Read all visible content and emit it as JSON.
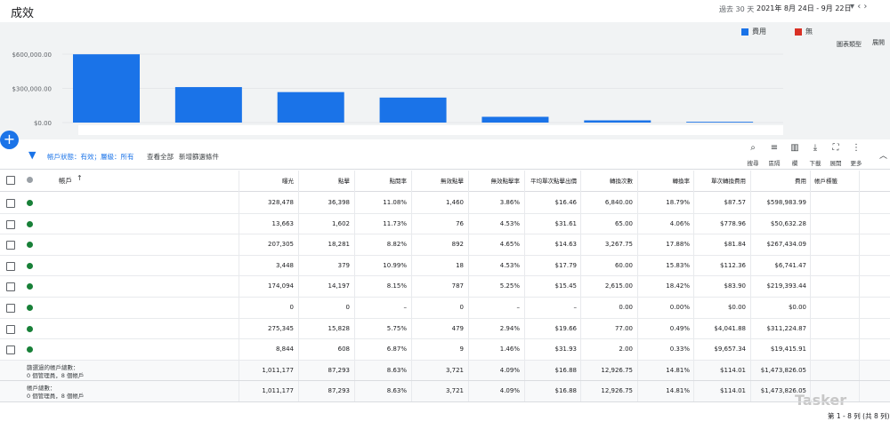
{
  "header": {
    "title": "成效",
    "date_range_label": "過去 30 天",
    "date_range": "2021年 8月 24日 - 9月 22日"
  },
  "chart_controls": {
    "metric2": "無",
    "chart_type": "圖表類型",
    "expand": "展開"
  },
  "chart_data": {
    "type": "bar",
    "categories": [
      null,
      null,
      null,
      null,
      null,
      null,
      null
    ],
    "series": [
      {
        "name": "費用",
        "color": "#1a73e8",
        "values": [
          598983.99,
          311224.87,
          267434.09,
          219393.44,
          50632.28,
          19415.91,
          6741.47
        ]
      }
    ],
    "ylim": [
      0,
      600000
    ],
    "yticks": [
      {
        "value": 0,
        "label": "$0.00"
      },
      {
        "value": 300000,
        "label": "$300,000.00"
      },
      {
        "value": 600000,
        "label": "$600,000.00"
      }
    ],
    "grid": true
  },
  "filter": {
    "status": "帳戶狀態：有效；層級：所有",
    "view_all": "查看全部",
    "add_filter": "新增篩選條件"
  },
  "tools": [
    "搜尋",
    "區隔",
    "欄",
    "下載",
    "展開",
    "更多"
  ],
  "table": {
    "account_header": "帳戶",
    "columns": [
      "曝光",
      "點擊",
      "點閱率",
      "無效點擊",
      "無效點擊率",
      "平均單次點擊出價",
      "轉換次數",
      "轉換率",
      "單次轉換費用",
      "費用"
    ],
    "label_header": "帳戶標籤",
    "rows": [
      [
        "328,478",
        "36,398",
        "11.08%",
        "1,460",
        "3.86%",
        "$16.46",
        "6,840.00",
        "18.79%",
        "$87.57",
        "$598,983.99"
      ],
      [
        "13,663",
        "1,602",
        "11.73%",
        "76",
        "4.53%",
        "$31.61",
        "65.00",
        "4.06%",
        "$778.96",
        "$50,632.28"
      ],
      [
        "207,305",
        "18,281",
        "8.82%",
        "892",
        "4.65%",
        "$14.63",
        "3,267.75",
        "17.88%",
        "$81.84",
        "$267,434.09"
      ],
      [
        "3,448",
        "379",
        "10.99%",
        "18",
        "4.53%",
        "$17.79",
        "60.00",
        "15.83%",
        "$112.36",
        "$6,741.47"
      ],
      [
        "174,094",
        "14,197",
        "8.15%",
        "787",
        "5.25%",
        "$15.45",
        "2,615.00",
        "18.42%",
        "$83.90",
        "$219,393.44"
      ],
      [
        "0",
        "0",
        "–",
        "0",
        "–",
        "–",
        "0.00",
        "0.00%",
        "$0.00",
        "$0.00"
      ],
      [
        "275,345",
        "15,828",
        "5.75%",
        "479",
        "2.94%",
        "$19.66",
        "77.00",
        "0.49%",
        "$4,041.88",
        "$311,224.87"
      ],
      [
        "8,844",
        "608",
        "6.87%",
        "9",
        "1.46%",
        "$31.93",
        "2.00",
        "0.33%",
        "$9,657.34",
        "$19,415.91"
      ]
    ],
    "totals": [
      {
        "label": "篩選過的帳戶總數：",
        "sub": "0 個管理員，8 個帳戶",
        "cells": [
          "1,011,177",
          "87,293",
          "8.63%",
          "3,721",
          "4.09%",
          "$16.88",
          "12,926.75",
          "14.81%",
          "$114.01",
          "$1,473,826.05"
        ]
      },
      {
        "label": "帳戶總數：",
        "sub": "0 個管理員，8 個帳戶",
        "cells": [
          "1,011,177",
          "87,293",
          "8.63%",
          "3,721",
          "4.09%",
          "$16.88",
          "12,926.75",
          "14.81%",
          "$114.01",
          "$1,473,826.05"
        ]
      }
    ]
  },
  "footer": {
    "pagination": "第 1 - 8 列 (共 8 列)",
    "watermark": "Tasker"
  }
}
